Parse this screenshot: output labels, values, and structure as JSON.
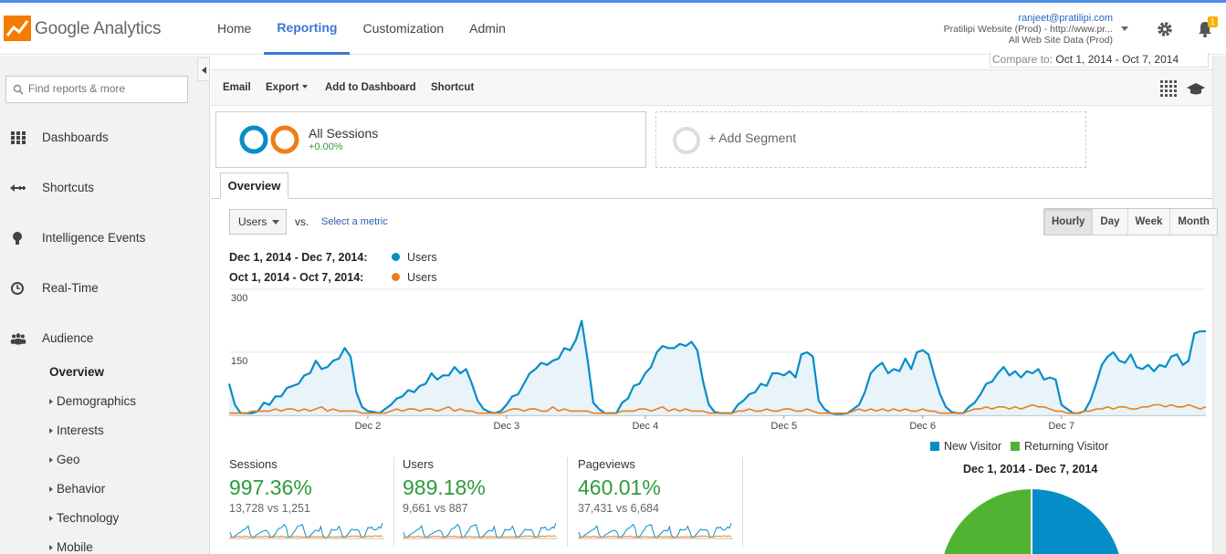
{
  "app": {
    "logo_text": "Google Analytics",
    "icons": {
      "logo": "analytics-logo-icon",
      "settings": "gear-icon",
      "notifications": "bell-icon"
    },
    "notification_count": "1"
  },
  "nav": {
    "tabs": [
      {
        "label": "Home",
        "active": false
      },
      {
        "label": "Reporting",
        "active": true
      },
      {
        "label": "Customization",
        "active": false
      },
      {
        "label": "Admin",
        "active": false
      }
    ]
  },
  "account": {
    "email": "ranjeet@pratilipi.com",
    "property": "Pratilipi Website (Prod) - http://www.pr...",
    "view": "All Web Site Data (Prod)"
  },
  "sidebar": {
    "search_placeholder": "Find reports & more",
    "items": [
      {
        "label": "Dashboards",
        "icon": "grid-icon"
      },
      {
        "label": "Shortcuts",
        "icon": "shortcut-arrow-icon"
      },
      {
        "label": "Intelligence Events",
        "icon": "lightbulb-icon"
      },
      {
        "label": "Real-Time",
        "icon": "clock-icon"
      },
      {
        "label": "Audience",
        "icon": "people-icon"
      }
    ],
    "audience_sub": [
      {
        "label": "Overview",
        "active": true,
        "expandable": false
      },
      {
        "label": "Demographics",
        "active": false,
        "expandable": true
      },
      {
        "label": "Interests",
        "active": false,
        "expandable": true
      },
      {
        "label": "Geo",
        "active": false,
        "expandable": true
      },
      {
        "label": "Behavior",
        "active": false,
        "expandable": true
      },
      {
        "label": "Technology",
        "active": false,
        "expandable": true
      },
      {
        "label": "Mobile",
        "active": false,
        "expandable": true
      }
    ]
  },
  "date_range": {
    "compare_label": "Compare to:",
    "compare_value": "Oct 1, 2014 - Oct 7, 2014"
  },
  "toolbar": {
    "email": "Email",
    "export": "Export",
    "add_to_dashboard": "Add to Dashboard",
    "shortcut": "Shortcut"
  },
  "segments": {
    "active": {
      "title": "All Sessions",
      "subtitle": "+0.00%"
    },
    "add": "+ Add Segment"
  },
  "tabs": {
    "overview": "Overview"
  },
  "metric_selector": {
    "metric": "Users",
    "vs": "vs.",
    "select_metric": "Select a metric"
  },
  "periods": [
    "Hourly",
    "Day",
    "Week",
    "Month"
  ],
  "legend": [
    {
      "range": "Dec 1, 2014 - Dec 7, 2014:",
      "metric": "Users",
      "color": "#058dc7"
    },
    {
      "range": "Oct 1, 2014 - Oct 7, 2014:",
      "metric": "Users",
      "color": "#ed7e17"
    }
  ],
  "chart_data": {
    "type": "line",
    "title": "",
    "xlabel": "",
    "ylabel": "",
    "y_ticks": [
      "300",
      "150"
    ],
    "ylim": [
      0,
      300
    ],
    "x_tick_labels": [
      "Dec 2",
      "Dec 3",
      "Dec 4",
      "Dec 5",
      "Dec 6",
      "Dec 7"
    ],
    "x_unit": "hour",
    "series": [
      {
        "name": "Users",
        "color": "#058dc7",
        "values": [
          75,
          25,
          5,
          5,
          5,
          10,
          30,
          25,
          45,
          45,
          65,
          70,
          75,
          95,
          100,
          130,
          110,
          115,
          130,
          135,
          160,
          140,
          55,
          20,
          10,
          8,
          5,
          15,
          25,
          40,
          45,
          60,
          55,
          70,
          75,
          100,
          85,
          95,
          95,
          115,
          100,
          110,
          75,
          35,
          15,
          8,
          5,
          10,
          25,
          45,
          50,
          75,
          100,
          110,
          125,
          120,
          130,
          135,
          160,
          155,
          180,
          225,
          135,
          30,
          15,
          5,
          5,
          5,
          30,
          40,
          70,
          75,
          100,
          115,
          150,
          165,
          160,
          160,
          170,
          165,
          175,
          155,
          80,
          25,
          8,
          5,
          5,
          5,
          25,
          35,
          50,
          55,
          75,
          70,
          100,
          100,
          95,
          105,
          90,
          145,
          150,
          140,
          35,
          15,
          5,
          3,
          3,
          5,
          15,
          25,
          55,
          100,
          115,
          125,
          100,
          110,
          105,
          135,
          110,
          150,
          155,
          145,
          95,
          50,
          20,
          8,
          5,
          5,
          20,
          30,
          50,
          75,
          80,
          100,
          115,
          95,
          105,
          90,
          105,
          100,
          110,
          85,
          90,
          85,
          25,
          15,
          5,
          5,
          10,
          35,
          75,
          120,
          140,
          150,
          130,
          125,
          145,
          115,
          110,
          120,
          105,
          120,
          115,
          140,
          145,
          120,
          130,
          195,
          200,
          200
        ]
      },
      {
        "name": "Users",
        "color": "#ed7e17",
        "values": [
          5,
          5,
          5,
          5,
          10,
          10,
          10,
          10,
          15,
          10,
          15,
          15,
          10,
          15,
          10,
          15,
          20,
          10,
          15,
          10,
          10,
          10,
          10,
          5,
          5,
          5,
          5,
          5,
          10,
          15,
          10,
          15,
          15,
          10,
          15,
          15,
          10,
          15,
          20,
          10,
          15,
          10,
          10,
          5,
          5,
          5,
          5,
          5,
          10,
          15,
          15,
          10,
          15,
          15,
          10,
          10,
          20,
          10,
          15,
          10,
          10,
          10,
          10,
          5,
          5,
          5,
          5,
          5,
          10,
          10,
          10,
          15,
          15,
          10,
          15,
          20,
          10,
          15,
          10,
          15,
          10,
          10,
          10,
          5,
          5,
          5,
          5,
          5,
          10,
          10,
          15,
          10,
          10,
          15,
          10,
          10,
          15,
          15,
          10,
          10,
          15,
          10,
          5,
          5,
          5,
          5,
          5,
          5,
          10,
          15,
          10,
          15,
          10,
          15,
          10,
          15,
          10,
          15,
          10,
          10,
          15,
          10,
          10,
          5,
          5,
          5,
          5,
          5,
          10,
          15,
          15,
          20,
          15,
          20,
          20,
          15,
          20,
          15,
          20,
          25,
          20,
          20,
          15,
          10,
          10,
          5,
          5,
          5,
          10,
          10,
          15,
          15,
          20,
          15,
          20,
          20,
          15,
          15,
          20,
          20,
          25,
          25,
          20,
          25,
          20,
          20,
          25,
          20,
          15,
          20
        ]
      }
    ]
  },
  "scorecards": [
    {
      "name": "Sessions",
      "change": "997.36%",
      "comparison": "13,728 vs 1,251"
    },
    {
      "name": "Users",
      "change": "989.18%",
      "comparison": "9,661 vs 887"
    },
    {
      "name": "Pageviews",
      "change": "460.01%",
      "comparison": "37,431 vs 6,684"
    }
  ],
  "visitor_pie": {
    "legend": [
      {
        "label": "New Visitor",
        "color": "#058dc7"
      },
      {
        "label": "Returning Visitor",
        "color": "#50b432"
      }
    ],
    "title": "Dec 1, 2014 - Dec 7, 2014"
  }
}
